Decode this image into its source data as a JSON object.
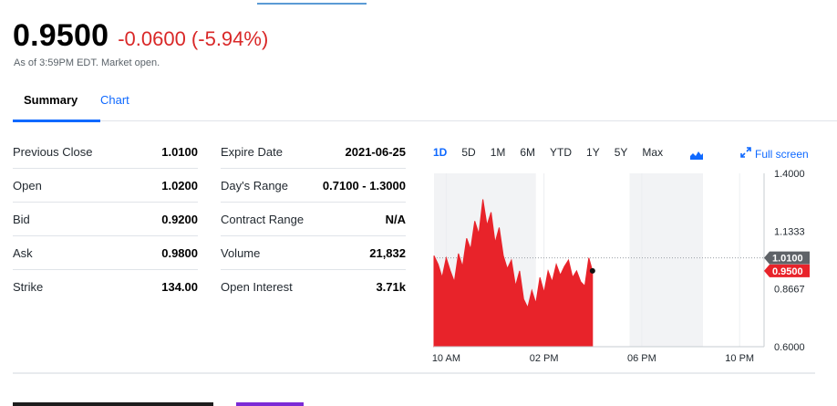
{
  "header": {
    "price": "0.9500",
    "change": "-0.0600 (-5.94%)",
    "as_of": "As of 3:59PM EDT. Market open."
  },
  "tabs": [
    {
      "label": "Summary",
      "active": true
    },
    {
      "label": "Chart",
      "active": false
    }
  ],
  "stats_left": [
    {
      "label": "Previous Close",
      "value": "1.0100"
    },
    {
      "label": "Open",
      "value": "1.0200"
    },
    {
      "label": "Bid",
      "value": "0.9200"
    },
    {
      "label": "Ask",
      "value": "0.9800"
    },
    {
      "label": "Strike",
      "value": "134.00"
    }
  ],
  "stats_right": [
    {
      "label": "Expire Date",
      "value": "2021-06-25"
    },
    {
      "label": "Day's Range",
      "value": "0.7100 - 1.3000"
    },
    {
      "label": "Contract Range",
      "value": "N/A"
    },
    {
      "label": "Volume",
      "value": "21,832"
    },
    {
      "label": "Open Interest",
      "value": "3.71k"
    }
  ],
  "chart_controls": {
    "ranges": [
      "1D",
      "5D",
      "1M",
      "6M",
      "YTD",
      "1Y",
      "5Y",
      "Max"
    ],
    "active_range": "1D",
    "chart_type_icon": "mountain-chart-icon",
    "fullscreen_label": "Full screen",
    "fullscreen_icon": "expand-arrows-icon"
  },
  "chart_data": {
    "type": "area",
    "ylim": [
      0.6,
      1.4
    ],
    "y_ticks": [
      "1.4000",
      "1.1333",
      "0.8667",
      "0.6000"
    ],
    "x_ticks": [
      "10 AM",
      "02 PM",
      "06 PM",
      "10 PM"
    ],
    "series": [
      {
        "color": "#e8232a",
        "x": [
          "09:30",
          "09:40",
          "09:50",
          "10:00",
          "10:10",
          "10:20",
          "10:30",
          "10:40",
          "10:50",
          "11:00",
          "11:10",
          "11:20",
          "11:30",
          "11:40",
          "11:50",
          "12:00",
          "12:10",
          "12:20",
          "12:30",
          "12:40",
          "12:50",
          "13:00",
          "13:10",
          "13:20",
          "13:30",
          "13:40",
          "13:50",
          "14:00",
          "14:10",
          "14:20",
          "14:30",
          "14:40",
          "14:50",
          "15:00",
          "15:10",
          "15:20",
          "15:30",
          "15:40",
          "15:50",
          "15:59"
        ],
        "values": [
          1.02,
          0.98,
          0.92,
          1.01,
          0.95,
          0.9,
          1.03,
          0.97,
          1.1,
          1.05,
          1.18,
          1.12,
          1.28,
          1.16,
          1.22,
          1.08,
          1.15,
          1.02,
          0.96,
          1.0,
          0.88,
          0.95,
          0.82,
          0.78,
          0.86,
          0.8,
          0.92,
          0.85,
          0.95,
          0.9,
          0.98,
          0.93,
          0.97,
          1.0,
          0.92,
          0.95,
          0.9,
          0.88,
          1.01,
          0.95
        ]
      }
    ],
    "previous_close": {
      "value": 1.01,
      "label": "1.0100"
    },
    "current": {
      "value": 0.95,
      "label": "0.9500"
    }
  }
}
